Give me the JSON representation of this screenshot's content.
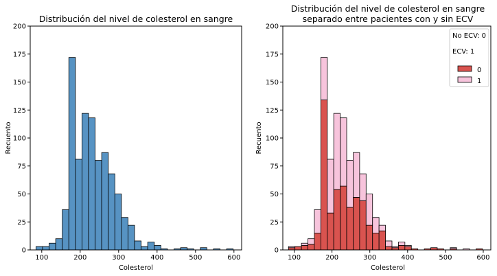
{
  "chart_data": [
    {
      "type": "bar",
      "subtype": "histogram",
      "title": "Distribución del nivel de colesterol en sangre",
      "xlabel": "Colesterol",
      "ylabel": "Recuento",
      "xlim": [
        70,
        620
      ],
      "ylim": [
        0,
        200
      ],
      "xticks": [
        100,
        200,
        300,
        400,
        500,
        600
      ],
      "yticks": [
        0,
        25,
        50,
        75,
        100,
        125,
        150,
        175,
        200
      ],
      "bin_start": 85,
      "bin_width": 17.1,
      "values": [
        3,
        3,
        6,
        10,
        36,
        172,
        81,
        122,
        118,
        80,
        87,
        68,
        50,
        29,
        22,
        8,
        3,
        7,
        4,
        1,
        0,
        1,
        2,
        1,
        0,
        2,
        0,
        1,
        0,
        1
      ],
      "color": "#5793c3",
      "grid": false
    },
    {
      "type": "bar",
      "subtype": "stacked_histogram",
      "title": "Distribución del nivel de colesterol en sangre",
      "subtitle": "separado entre pacientes con y sin ECV",
      "xlabel": "Colesterol",
      "ylabel": "Recuento",
      "xlim": [
        70,
        620
      ],
      "ylim": [
        0,
        200
      ],
      "xticks": [
        100,
        200,
        300,
        400,
        500,
        600
      ],
      "yticks": [
        0,
        25,
        50,
        75,
        100,
        125,
        150,
        175,
        200
      ],
      "bin_start": 85,
      "bin_width": 17.1,
      "series": [
        {
          "name": "0",
          "color": "#d9534f",
          "values": [
            2,
            3,
            4,
            5,
            15,
            134,
            33,
            54,
            57,
            38,
            47,
            44,
            22,
            15,
            17,
            3,
            2,
            4,
            3,
            1,
            0,
            1,
            2,
            1,
            0,
            1,
            0,
            0,
            0,
            1
          ]
        },
        {
          "name": "1",
          "color": "#f7c4dc",
          "values": [
            1,
            0,
            2,
            5,
            21,
            38,
            48,
            68,
            61,
            42,
            40,
            24,
            28,
            14,
            5,
            5,
            1,
            3,
            1,
            0,
            0,
            0,
            0,
            0,
            0,
            1,
            0,
            1,
            0,
            0
          ]
        }
      ],
      "legend": {
        "position": "top-right",
        "title_lines": [
          "No ECV: 0",
          "ECV: 1"
        ],
        "entries": [
          "0",
          "1"
        ]
      },
      "grid": false
    }
  ]
}
